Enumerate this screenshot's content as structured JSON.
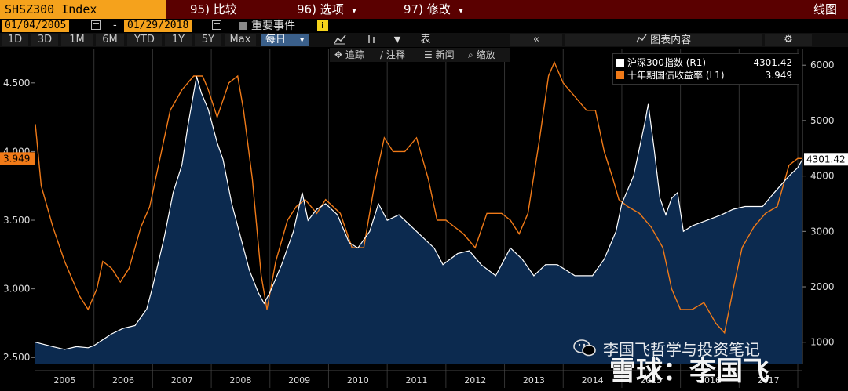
{
  "header": {
    "ticker": "SHSZ300 Index",
    "menu": [
      {
        "num": "95)",
        "label": "比较",
        "caret": ""
      },
      {
        "num": "96)",
        "label": "选项",
        "caret": "▾"
      },
      {
        "num": "97)",
        "label": "修改",
        "caret": "▾"
      }
    ],
    "view_label": "线图"
  },
  "dates": {
    "start": "01/04/2005",
    "separator": "-",
    "end": "01/29/2018",
    "events_label": "重要事件",
    "info": "i"
  },
  "toolbar": {
    "ranges": [
      "1D",
      "3D",
      "1M",
      "6M",
      "YTD",
      "1Y",
      "5Y",
      "Max"
    ],
    "frequency": "每日",
    "frequency_caret": "▾",
    "table_label": "表",
    "collapse": "«",
    "chart_content_label": "图表内容",
    "settings_icon": "gear-icon"
  },
  "subtools": [
    "追踪",
    "注释",
    "新闻",
    "缩放"
  ],
  "legend": [
    {
      "name": "沪深300指数 (R1)",
      "value": "4301.42",
      "color": "#ffffff"
    },
    {
      "name": "十年期国债收益率 (L1)",
      "value": "3.949",
      "color": "#f07a18"
    }
  ],
  "watermarks": {
    "small": "李国飞哲学与投资笔记",
    "big": "雪球：李国飞"
  },
  "chart_data": {
    "type": "line",
    "x_range": [
      "2005-01-04",
      "2018-01-29"
    ],
    "x_ticks": [
      "2005",
      "2006",
      "2007",
      "2008",
      "2009",
      "2010",
      "2011",
      "2012",
      "2013",
      "2014",
      "2015",
      "2016",
      "2017"
    ],
    "left_axis": {
      "ylim": [
        2.45,
        4.75
      ],
      "ticks": [
        2.5,
        3.0,
        3.5,
        4.0,
        4.5
      ],
      "tick_labels": [
        "2.500",
        "3.000",
        "3.500",
        "4.000",
        "4.500"
      ],
      "current_label": "3.949"
    },
    "right_axis": {
      "ylim": [
        600,
        6300
      ],
      "ticks": [
        1000,
        2000,
        3000,
        4000,
        5000,
        6000
      ],
      "tick_labels": [
        "1000",
        "2000",
        "3000",
        "4000",
        "5000",
        "6000"
      ],
      "current_label": "4301.42"
    },
    "series": [
      {
        "name": "沪深300指数 (R1)",
        "axis": "right",
        "color": "#ffffff",
        "fill": "#0c2a4f",
        "points": [
          [
            2005.0,
            1000
          ],
          [
            2005.3,
            920
          ],
          [
            2005.5,
            870
          ],
          [
            2005.7,
            920
          ],
          [
            2005.9,
            900
          ],
          [
            2006.0,
            940
          ],
          [
            2006.3,
            1150
          ],
          [
            2006.5,
            1250
          ],
          [
            2006.7,
            1300
          ],
          [
            2006.9,
            1600
          ],
          [
            2007.0,
            2000
          ],
          [
            2007.2,
            2900
          ],
          [
            2007.35,
            3700
          ],
          [
            2007.5,
            4200
          ],
          [
            2007.6,
            4900
          ],
          [
            2007.75,
            5800
          ],
          [
            2007.83,
            5500
          ],
          [
            2007.95,
            5200
          ],
          [
            2008.1,
            4600
          ],
          [
            2008.2,
            4300
          ],
          [
            2008.35,
            3500
          ],
          [
            2008.5,
            2900
          ],
          [
            2008.65,
            2300
          ],
          [
            2008.8,
            1900
          ],
          [
            2008.9,
            1700
          ],
          [
            2009.0,
            1900
          ],
          [
            2009.2,
            2400
          ],
          [
            2009.4,
            3000
          ],
          [
            2009.55,
            3700
          ],
          [
            2009.65,
            3200
          ],
          [
            2009.8,
            3400
          ],
          [
            2009.95,
            3500
          ],
          [
            2010.15,
            3300
          ],
          [
            2010.35,
            2800
          ],
          [
            2010.5,
            2700
          ],
          [
            2010.7,
            3000
          ],
          [
            2010.85,
            3500
          ],
          [
            2011.0,
            3200
          ],
          [
            2011.2,
            3300
          ],
          [
            2011.4,
            3100
          ],
          [
            2011.6,
            2900
          ],
          [
            2011.8,
            2700
          ],
          [
            2011.95,
            2400
          ],
          [
            2012.2,
            2600
          ],
          [
            2012.4,
            2650
          ],
          [
            2012.6,
            2400
          ],
          [
            2012.85,
            2200
          ],
          [
            2012.95,
            2400
          ],
          [
            2013.1,
            2700
          ],
          [
            2013.3,
            2500
          ],
          [
            2013.5,
            2200
          ],
          [
            2013.7,
            2400
          ],
          [
            2013.9,
            2400
          ],
          [
            2014.2,
            2200
          ],
          [
            2014.5,
            2200
          ],
          [
            2014.7,
            2500
          ],
          [
            2014.9,
            3000
          ],
          [
            2015.0,
            3500
          ],
          [
            2015.2,
            4000
          ],
          [
            2015.4,
            5000
          ],
          [
            2015.45,
            5300
          ],
          [
            2015.55,
            4500
          ],
          [
            2015.65,
            3600
          ],
          [
            2015.75,
            3300
          ],
          [
            2015.85,
            3600
          ],
          [
            2015.95,
            3700
          ],
          [
            2016.05,
            3000
          ],
          [
            2016.2,
            3100
          ],
          [
            2016.45,
            3200
          ],
          [
            2016.7,
            3300
          ],
          [
            2016.9,
            3400
          ],
          [
            2017.1,
            3450
          ],
          [
            2017.4,
            3450
          ],
          [
            2017.6,
            3700
          ],
          [
            2017.85,
            4000
          ],
          [
            2018.0,
            4150
          ],
          [
            2018.08,
            4301.42
          ]
        ]
      },
      {
        "name": "十年期国债收益率 (L1)",
        "axis": "left",
        "color": "#f07a18",
        "points": [
          [
            2005.0,
            4.2
          ],
          [
            2005.1,
            3.75
          ],
          [
            2005.3,
            3.45
          ],
          [
            2005.5,
            3.2
          ],
          [
            2005.75,
            2.95
          ],
          [
            2005.9,
            2.85
          ],
          [
            2006.05,
            3.0
          ],
          [
            2006.15,
            3.2
          ],
          [
            2006.3,
            3.15
          ],
          [
            2006.45,
            3.05
          ],
          [
            2006.6,
            3.15
          ],
          [
            2006.8,
            3.45
          ],
          [
            2006.95,
            3.6
          ],
          [
            2007.1,
            3.9
          ],
          [
            2007.3,
            4.3
          ],
          [
            2007.5,
            4.45
          ],
          [
            2007.7,
            4.55
          ],
          [
            2007.85,
            4.55
          ],
          [
            2007.95,
            4.45
          ],
          [
            2008.1,
            4.25
          ],
          [
            2008.3,
            4.5
          ],
          [
            2008.45,
            4.55
          ],
          [
            2008.55,
            4.3
          ],
          [
            2008.7,
            3.8
          ],
          [
            2008.85,
            3.1
          ],
          [
            2008.95,
            2.85
          ],
          [
            2009.1,
            3.2
          ],
          [
            2009.3,
            3.5
          ],
          [
            2009.45,
            3.6
          ],
          [
            2009.6,
            3.65
          ],
          [
            2009.8,
            3.55
          ],
          [
            2009.95,
            3.65
          ],
          [
            2010.2,
            3.55
          ],
          [
            2010.4,
            3.3
          ],
          [
            2010.6,
            3.3
          ],
          [
            2010.8,
            3.8
          ],
          [
            2010.95,
            4.1
          ],
          [
            2011.1,
            4.0
          ],
          [
            2011.3,
            4.0
          ],
          [
            2011.5,
            4.1
          ],
          [
            2011.7,
            3.8
          ],
          [
            2011.85,
            3.5
          ],
          [
            2012.0,
            3.5
          ],
          [
            2012.3,
            3.4
          ],
          [
            2012.5,
            3.3
          ],
          [
            2012.7,
            3.55
          ],
          [
            2012.95,
            3.55
          ],
          [
            2013.1,
            3.5
          ],
          [
            2013.25,
            3.4
          ],
          [
            2013.4,
            3.55
          ],
          [
            2013.6,
            4.1
          ],
          [
            2013.75,
            4.55
          ],
          [
            2013.85,
            4.65
          ],
          [
            2014.0,
            4.5
          ],
          [
            2014.2,
            4.4
          ],
          [
            2014.4,
            4.3
          ],
          [
            2014.55,
            4.3
          ],
          [
            2014.7,
            4.0
          ],
          [
            2014.85,
            3.8
          ],
          [
            2014.95,
            3.65
          ],
          [
            2015.1,
            3.6
          ],
          [
            2015.3,
            3.55
          ],
          [
            2015.5,
            3.45
          ],
          [
            2015.7,
            3.3
          ],
          [
            2015.85,
            3.0
          ],
          [
            2016.0,
            2.85
          ],
          [
            2016.2,
            2.85
          ],
          [
            2016.4,
            2.9
          ],
          [
            2016.6,
            2.75
          ],
          [
            2016.75,
            2.68
          ],
          [
            2016.9,
            3.0
          ],
          [
            2017.05,
            3.3
          ],
          [
            2017.25,
            3.45
          ],
          [
            2017.45,
            3.55
          ],
          [
            2017.65,
            3.6
          ],
          [
            2017.85,
            3.9
          ],
          [
            2018.0,
            3.95
          ],
          [
            2018.08,
            3.949
          ]
        ]
      }
    ]
  }
}
